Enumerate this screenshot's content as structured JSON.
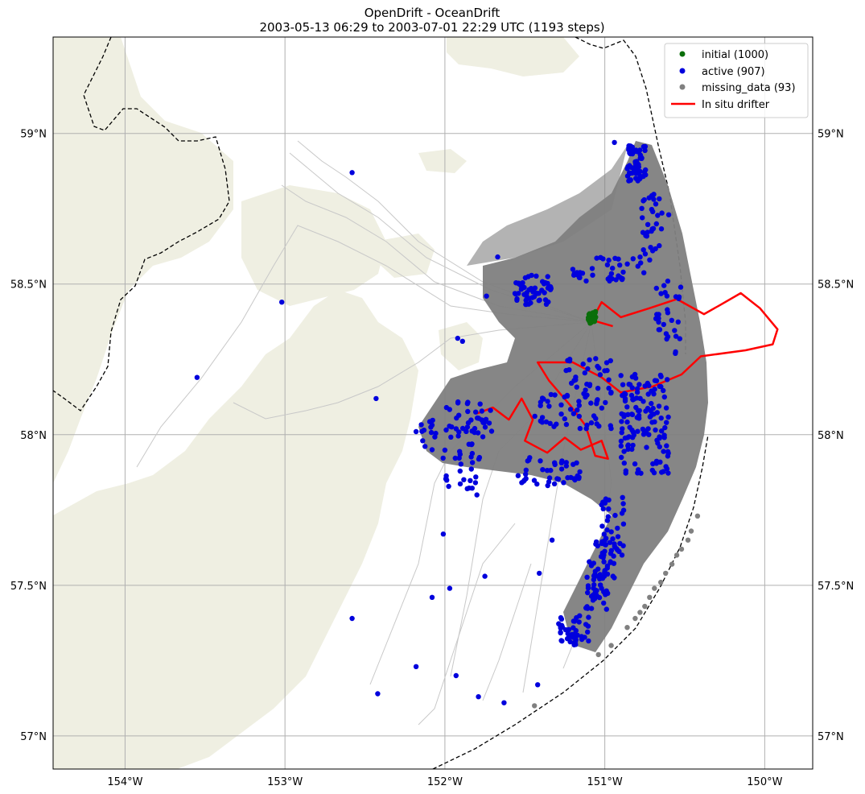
{
  "title": {
    "line1": "OpenDrift - OceanDrift",
    "line2": "2003-05-13 06:29 to 2003-07-01 22:29 UTC (1193 steps)"
  },
  "colors": {
    "land": "#efefe2",
    "grid": "#b0b0b0",
    "trajectory": "#808080",
    "trajectory_light": "#c8c8c8",
    "initial": "#0a6e0a",
    "active": "#0000dd",
    "missing": "#808080",
    "drifter": "#ff0000",
    "border": "#000000"
  },
  "map": {
    "lon_range": [
      -154.45,
      -149.7
    ],
    "lat_range": [
      56.89,
      59.32
    ],
    "lon_ticks": [
      {
        "value": -154,
        "label": "154°W"
      },
      {
        "value": -153,
        "label": "153°W"
      },
      {
        "value": -152,
        "label": "152°W"
      },
      {
        "value": -151,
        "label": "151°W"
      },
      {
        "value": -150,
        "label": "150°W"
      }
    ],
    "lat_ticks": [
      {
        "value": 59.0,
        "label": "59°N"
      },
      {
        "value": 58.5,
        "label": "58.5°N"
      },
      {
        "value": 58.0,
        "label": "58°N"
      },
      {
        "value": 57.5,
        "label": "57.5°N"
      },
      {
        "value": 57.0,
        "label": "57°N"
      }
    ]
  },
  "legend": {
    "placement": "top-right",
    "entries": [
      {
        "label": "initial (1000)",
        "kind": "dot",
        "color": "#0a6e0a"
      },
      {
        "label": "active (907)",
        "kind": "dot",
        "color": "#0000dd"
      },
      {
        "label": "missing_data (93)",
        "kind": "dot",
        "color": "#808080"
      },
      {
        "label": "In situ drifter",
        "kind": "line",
        "color": "#ff0000"
      }
    ]
  },
  "chart_data": {
    "type": "scatter",
    "initial_position": {
      "lon": -151.08,
      "lat": 58.39
    },
    "missing_data_positions": [
      {
        "lon": -150.42,
        "lat": 57.73
      },
      {
        "lon": -150.46,
        "lat": 57.68
      },
      {
        "lon": -150.52,
        "lat": 57.62
      },
      {
        "lon": -150.58,
        "lat": 57.57
      },
      {
        "lon": -150.65,
        "lat": 57.51
      },
      {
        "lon": -150.72,
        "lat": 57.46
      },
      {
        "lon": -150.78,
        "lat": 57.41
      },
      {
        "lon": -150.86,
        "lat": 57.36
      },
      {
        "lon": -150.96,
        "lat": 57.3
      },
      {
        "lon": -151.04,
        "lat": 57.27
      },
      {
        "lon": -150.48,
        "lat": 57.65
      },
      {
        "lon": -150.55,
        "lat": 57.6
      },
      {
        "lon": -150.62,
        "lat": 57.54
      },
      {
        "lon": -150.69,
        "lat": 57.49
      },
      {
        "lon": -150.75,
        "lat": 57.43
      },
      {
        "lon": -150.81,
        "lat": 57.39
      },
      {
        "lon": -151.44,
        "lat": 57.1
      }
    ],
    "active_sample_positions": [
      {
        "lon": -152.58,
        "lat": 58.87
      },
      {
        "lon": -153.02,
        "lat": 58.44
      },
      {
        "lon": -153.55,
        "lat": 58.19
      },
      {
        "lon": -152.43,
        "lat": 58.12
      },
      {
        "lon": -152.42,
        "lat": 57.14
      },
      {
        "lon": -152.58,
        "lat": 57.39
      },
      {
        "lon": -152.18,
        "lat": 57.23
      },
      {
        "lon": -152.08,
        "lat": 57.46
      },
      {
        "lon": -151.93,
        "lat": 57.2
      },
      {
        "lon": -151.79,
        "lat": 57.13
      },
      {
        "lon": -151.63,
        "lat": 57.11
      },
      {
        "lon": -151.42,
        "lat": 57.17
      },
      {
        "lon": -151.41,
        "lat": 57.54
      },
      {
        "lon": -151.33,
        "lat": 57.65
      },
      {
        "lon": -151.75,
        "lat": 57.53
      },
      {
        "lon": -151.8,
        "lat": 57.8
      },
      {
        "lon": -151.89,
        "lat": 58.31
      },
      {
        "lon": -151.92,
        "lat": 58.32
      },
      {
        "lon": -151.74,
        "lat": 58.46
      },
      {
        "lon": -151.67,
        "lat": 58.59
      },
      {
        "lon": -150.94,
        "lat": 58.97
      },
      {
        "lon": -150.6,
        "lat": 58.73
      },
      {
        "lon": -151.97,
        "lat": 57.49
      },
      {
        "lon": -152.01,
        "lat": 57.67
      },
      {
        "lon": -152.18,
        "lat": 58.01
      },
      {
        "lon": -152.08,
        "lat": 57.95
      }
    ],
    "in_situ_drifter_track": [
      {
        "lon": -151.8,
        "lat": 58.07
      },
      {
        "lon": -151.7,
        "lat": 58.09
      },
      {
        "lon": -151.6,
        "lat": 58.05
      },
      {
        "lon": -151.52,
        "lat": 58.12
      },
      {
        "lon": -151.45,
        "lat": 58.05
      },
      {
        "lon": -151.5,
        "lat": 57.98
      },
      {
        "lon": -151.36,
        "lat": 57.94
      },
      {
        "lon": -151.25,
        "lat": 57.99
      },
      {
        "lon": -151.15,
        "lat": 57.95
      },
      {
        "lon": -151.02,
        "lat": 57.98
      },
      {
        "lon": -150.98,
        "lat": 57.92
      },
      {
        "lon": -151.06,
        "lat": 57.93
      },
      {
        "lon": -151.12,
        "lat": 58.03
      },
      {
        "lon": -151.22,
        "lat": 58.1
      },
      {
        "lon": -151.35,
        "lat": 58.18
      },
      {
        "lon": -151.42,
        "lat": 58.24
      },
      {
        "lon": -151.2,
        "lat": 58.24
      },
      {
        "lon": -151.02,
        "lat": 58.19
      },
      {
        "lon": -150.9,
        "lat": 58.14
      },
      {
        "lon": -150.7,
        "lat": 58.16
      },
      {
        "lon": -150.52,
        "lat": 58.2
      },
      {
        "lon": -150.4,
        "lat": 58.26
      },
      {
        "lon": -150.12,
        "lat": 58.28
      },
      {
        "lon": -149.95,
        "lat": 58.3
      },
      {
        "lon": -149.92,
        "lat": 58.35
      },
      {
        "lon": -150.03,
        "lat": 58.42
      },
      {
        "lon": -150.15,
        "lat": 58.47
      },
      {
        "lon": -150.28,
        "lat": 58.43
      },
      {
        "lon": -150.38,
        "lat": 58.4
      },
      {
        "lon": -150.55,
        "lat": 58.45
      },
      {
        "lon": -150.72,
        "lat": 58.42
      },
      {
        "lon": -150.9,
        "lat": 58.39
      },
      {
        "lon": -151.02,
        "lat": 58.44
      },
      {
        "lon": -151.08,
        "lat": 58.38
      },
      {
        "lon": -150.95,
        "lat": 58.36
      }
    ]
  }
}
